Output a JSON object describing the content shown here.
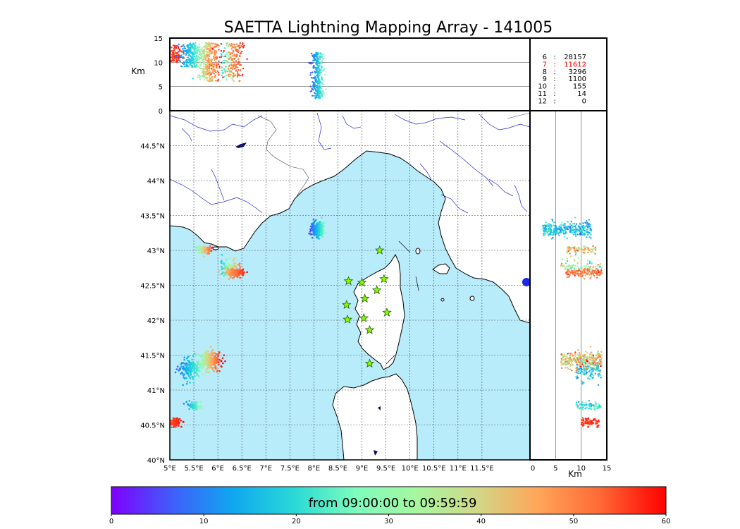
{
  "title": "SAETTA Lightning Mapping Array - 141005",
  "colors": {
    "sea": "#b8ecfb",
    "land": "#ffffff",
    "coast": "#000000",
    "river": "#2222dd",
    "border": "#444444",
    "grid": "#444444",
    "station_fill": "#7fff00",
    "station_stroke": "#2d5a00",
    "highlight_count": "#ff0000"
  },
  "colormap": [
    "#7f00ff",
    "#3f5efb",
    "#0fa8f0",
    "#2ad9d6",
    "#7dfcbd",
    "#a6f79f",
    "#d1d788",
    "#ffa659",
    "#ff6a36",
    "#ff0000"
  ],
  "chart_data": {
    "type": "scatter",
    "title": "SAETTA Lightning Mapping Array - 141005",
    "map": {
      "xlim": [
        5,
        12.5
      ],
      "ylim": [
        40,
        45
      ],
      "x_ticks": [
        "5°E",
        "5.5°E",
        "6°E",
        "6.5°E",
        "7°E",
        "7.5°E",
        "8°E",
        "8.5°E",
        "9°E",
        "9.5°E",
        "10°E",
        "10.5°E",
        "11°E",
        "11.5°E"
      ],
      "x_tick_values": [
        5,
        5.5,
        6,
        6.5,
        7,
        7.5,
        8,
        8.5,
        9,
        9.5,
        10,
        10.5,
        11,
        11.5
      ],
      "y_ticks": [
        "40°N",
        "40.5°N",
        "41°N",
        "41.5°N",
        "42°N",
        "42.5°N",
        "43°N",
        "43.5°N",
        "44°N",
        "44.5°N"
      ],
      "y_tick_values": [
        40,
        40.5,
        41,
        41.5,
        42,
        42.5,
        43,
        43.5,
        44,
        44.5
      ],
      "grid": true
    },
    "altitude_panel": {
      "ylabel": "Km",
      "ylim": [
        0,
        15
      ],
      "y_ticks": [
        "0",
        "5",
        "10",
        "15"
      ],
      "y_tick_values": [
        0,
        5,
        10,
        15
      ]
    },
    "side_panel": {
      "xlabel": "Km",
      "xlim": [
        0,
        15
      ],
      "x_ticks": [
        "0",
        "5",
        "10",
        "15"
      ],
      "x_tick_values": [
        0,
        5,
        10,
        15
      ]
    },
    "station_counts": [
      {
        "stations": "6",
        "count": "28157",
        "highlight": false
      },
      {
        "stations": "7",
        "count": "11612",
        "highlight": true
      },
      {
        "stations": "8",
        "count": "3296",
        "highlight": false
      },
      {
        "stations": "9",
        "count": "1100",
        "highlight": false
      },
      {
        "stations": "10",
        "count": "155",
        "highlight": false
      },
      {
        "stations": "11",
        "count": "14",
        "highlight": false
      },
      {
        "stations": "12",
        "count": "0",
        "highlight": false
      }
    ],
    "colorbar": {
      "label": "from 09:00:00 to 09:59:59",
      "range": [
        0,
        60
      ],
      "ticks": [
        "0",
        "10",
        "20",
        "30",
        "40",
        "50",
        "60"
      ],
      "tick_values": [
        0,
        10,
        20,
        30,
        40,
        50,
        60
      ]
    },
    "stations": [
      {
        "lon": 9.37,
        "lat": 43.0
      },
      {
        "lon": 8.72,
        "lat": 42.56
      },
      {
        "lon": 9.0,
        "lat": 42.54
      },
      {
        "lon": 9.46,
        "lat": 42.59
      },
      {
        "lon": 9.31,
        "lat": 42.43
      },
      {
        "lon": 9.06,
        "lat": 42.31
      },
      {
        "lon": 8.68,
        "lat": 42.22
      },
      {
        "lon": 9.52,
        "lat": 42.11
      },
      {
        "lon": 8.7,
        "lat": 42.01
      },
      {
        "lon": 9.04,
        "lat": 42.03
      },
      {
        "lon": 9.16,
        "lat": 41.86
      },
      {
        "lon": 9.16,
        "lat": 41.38
      }
    ],
    "clusters": [
      {
        "lon": 5.1,
        "lat": 40.54,
        "sd_lon": 0.07,
        "sd_lat": 0.03,
        "alt_min": 10.0,
        "alt_max": 13.5,
        "t_min": 54,
        "t_max": 59,
        "n": 90
      },
      {
        "lon": 5.5,
        "lat": 40.77,
        "sd_lon": 0.06,
        "sd_lat": 0.03,
        "alt_min": 9.0,
        "alt_max": 14.0,
        "t_min": 14,
        "t_max": 28,
        "n": 70
      },
      {
        "lon": 5.4,
        "lat": 41.3,
        "sd_lon": 0.12,
        "sd_lat": 0.08,
        "alt_min": 9.0,
        "alt_max": 14.0,
        "t_min": 8,
        "t_max": 26,
        "n": 160
      },
      {
        "lon": 5.82,
        "lat": 41.43,
        "sd_lon": 0.12,
        "sd_lat": 0.06,
        "alt_min": 6.0,
        "alt_max": 14.0,
        "t_min": 26,
        "t_max": 59,
        "n": 300
      },
      {
        "lon": 5.72,
        "lat": 43.01,
        "sd_lon": 0.08,
        "sd_lat": 0.03,
        "alt_min": 7.0,
        "alt_max": 13.0,
        "t_min": 28,
        "t_max": 58,
        "n": 80
      },
      {
        "lon": 6.24,
        "lat": 42.76,
        "sd_lon": 0.1,
        "sd_lat": 0.05,
        "alt_min": 6.0,
        "alt_max": 14.0,
        "t_min": 15,
        "t_max": 50,
        "n": 90
      },
      {
        "lon": 6.36,
        "lat": 42.68,
        "sd_lon": 0.1,
        "sd_lat": 0.03,
        "alt_min": 7.0,
        "alt_max": 14.0,
        "t_min": 46,
        "t_max": 58,
        "n": 140
      },
      {
        "lon": 8.08,
        "lat": 43.3,
        "sd_lon": 0.06,
        "sd_lat": 0.05,
        "alt_min": 2.5,
        "alt_max": 12.0,
        "t_min": 8,
        "t_max": 26,
        "n": 300
      }
    ]
  }
}
